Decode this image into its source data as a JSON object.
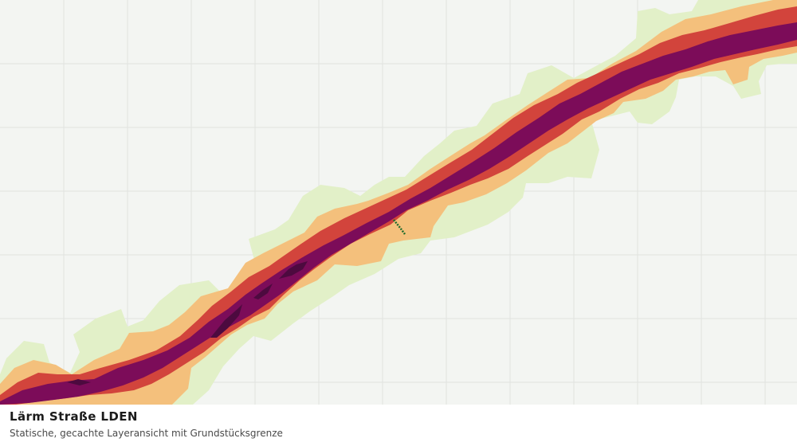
{
  "layer": {
    "title": "Lärm Straße LDEN",
    "subtitle": "Statische, gecachte Layeransicht mit Grundstücksgrenze"
  },
  "map": {
    "background_color": "#f3f5f2",
    "grid_color": "#e0e2df",
    "noise_band_colors": {
      "outer": "#e2f0c8",
      "light": "#f4c07c",
      "medium": "#d2443c",
      "high": "#7c0c59",
      "peak": "#4d0a3f"
    },
    "parcel_boundary_color": "#1c6b2c"
  }
}
